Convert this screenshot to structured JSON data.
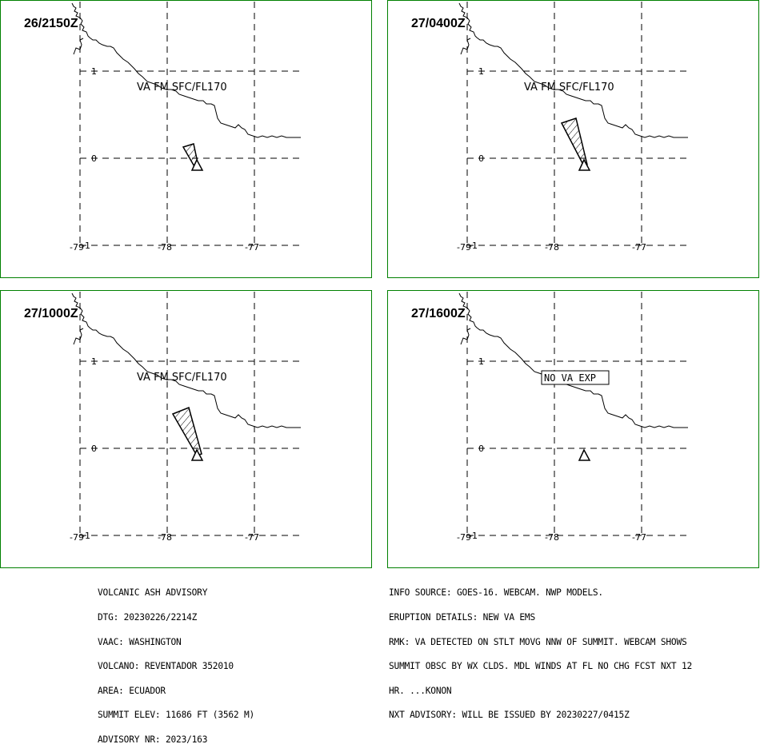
{
  "panels": [
    {
      "time": "26/2150Z",
      "label": "VA FM SFC/FL170",
      "boxed": false,
      "plume": "small"
    },
    {
      "time": "27/0400Z",
      "label": "VA FM SFC/FL170",
      "boxed": false,
      "plume": "medium"
    },
    {
      "time": "27/1000Z",
      "label": "VA FM SFC/FL170",
      "boxed": false,
      "plume": "large"
    },
    {
      "time": "27/1600Z",
      "label": "NO VA EXP",
      "boxed": true,
      "plume": "none"
    }
  ],
  "axes": {
    "lat_ticks": [
      "1",
      "0",
      "-1"
    ],
    "lon_ticks": [
      "-79",
      "-78",
      "-77"
    ]
  },
  "colors": {
    "frame": "#008000",
    "lines": "#000000",
    "background": "#ffffff"
  },
  "advisory": {
    "l1": "VOLCANIC ASH ADVISORY",
    "l2": "DTG: 20230226/2214Z",
    "l3": "VAAC: WASHINGTON",
    "l4": "VOLCANO: REVENTADOR 352010",
    "l5": "AREA: ECUADOR",
    "l6": "SUMMIT ELEV: 11686 FT (3562 M)",
    "l7": "ADVISORY NR: 2023/163"
  },
  "remarks": {
    "l1": "INFO SOURCE: GOES-16. WEBCAM. NWP MODELS.",
    "l2": "ERUPTION DETAILS: NEW VA EMS",
    "l3": "RMK: VA DETECTED ON STLT MOVG NNW OF SUMMIT. WEBCAM SHOWS",
    "l4": "SUMMIT OBSC BY WX CLDS. MDL WINDS AT FL NO CHG FCST NXT 12",
    "l5": "HR. ...KONON",
    "l6": "NXT ADVISORY: WILL BE ISSUED BY 20230227/0415Z"
  }
}
